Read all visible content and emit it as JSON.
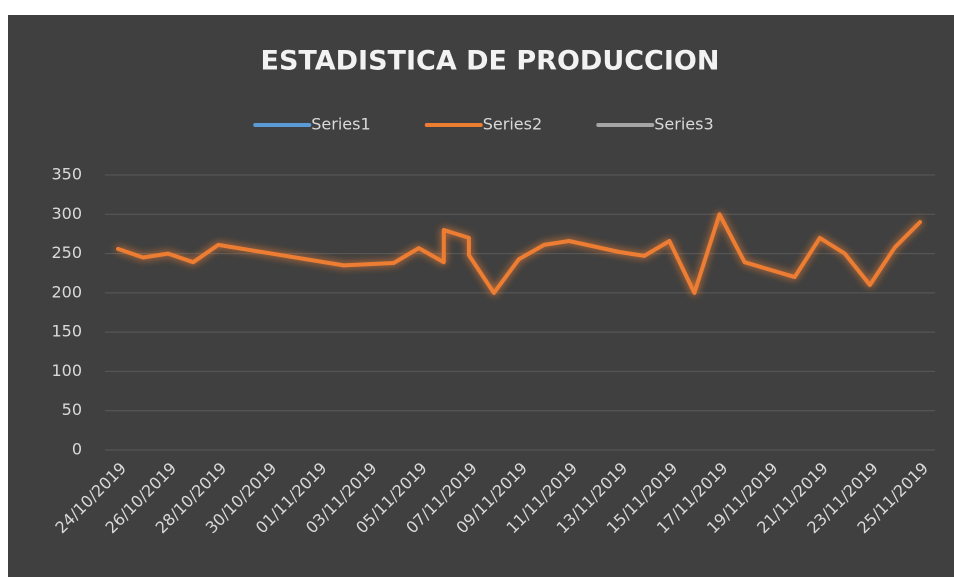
{
  "chart_data": {
    "type": "line",
    "title": "ESTADISTICA DE PRODUCCION",
    "x": [
      "24/10/2019",
      "25/10/2019",
      "26/10/2019",
      "27/10/2019",
      "28/10/2019",
      "02/11/2019",
      "04/11/2019",
      "05/11/2019",
      "06/11/2019",
      "06/11/2019",
      "07/11/2019",
      "07/11/2019",
      "08/11/2019",
      "09/11/2019",
      "10/11/2019",
      "11/11/2019",
      "13/11/2019",
      "14/11/2019",
      "15/11/2019",
      "16/11/2019",
      "17/11/2019",
      "18/11/2019",
      "20/11/2019",
      "21/11/2019",
      "22/11/2019",
      "23/11/2019",
      "24/11/2019",
      "25/11/2019"
    ],
    "series": [
      {
        "name": "Series1",
        "color": "#5b9bd5",
        "values": [
          null,
          null,
          null,
          null,
          null,
          null,
          null,
          null,
          null,
          null,
          null,
          null,
          null,
          null,
          null,
          null,
          null,
          null,
          null,
          null,
          null,
          null,
          null,
          null,
          null,
          null,
          null,
          null
        ]
      },
      {
        "name": "Series2",
        "color": "#ed7d31",
        "values": [
          256,
          245,
          250,
          239,
          261,
          235,
          238,
          257,
          239,
          280,
          270,
          248,
          200,
          243,
          261,
          266,
          252,
          247,
          266,
          200,
          300,
          239,
          220,
          270,
          250,
          210,
          258,
          290
        ]
      },
      {
        "name": "Series3",
        "color": "#a5a5a5",
        "values": [
          null,
          null,
          null,
          null,
          null,
          null,
          null,
          null,
          null,
          null,
          null,
          null,
          null,
          null,
          null,
          null,
          null,
          null,
          null,
          null,
          null,
          null,
          null,
          null,
          null,
          null,
          null,
          null
        ]
      }
    ],
    "xlim": [
      "24/10/2019",
      "25/11/2019"
    ],
    "xticks": [
      "24/10/2019",
      "26/10/2019",
      "28/10/2019",
      "30/10/2019",
      "01/11/2019",
      "03/11/2019",
      "05/11/2019",
      "07/11/2019",
      "09/11/2019",
      "11/11/2019",
      "13/11/2019",
      "15/11/2019",
      "17/11/2019",
      "19/11/2019",
      "21/11/2019",
      "23/11/2019",
      "25/11/2019"
    ],
    "ylim": [
      0,
      350
    ],
    "yticks": [
      0,
      50,
      100,
      150,
      200,
      250,
      300,
      350
    ],
    "grid": true,
    "legend": "top"
  }
}
